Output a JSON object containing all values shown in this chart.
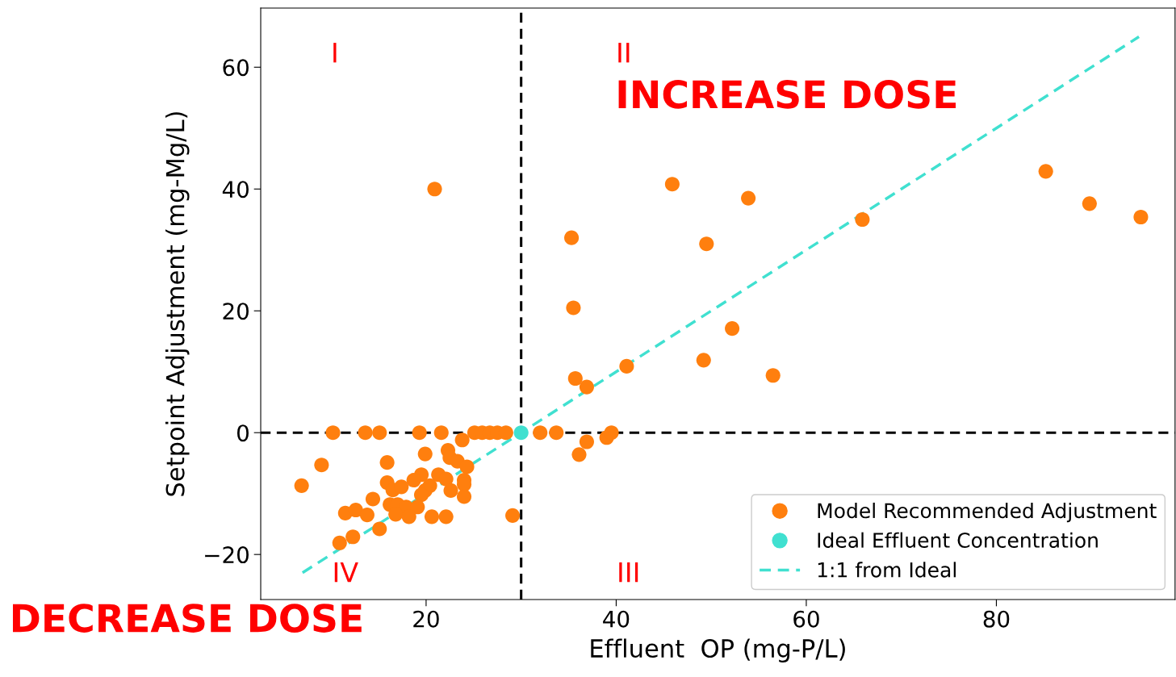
{
  "chart_data": {
    "type": "scatter",
    "xlabel": "Effluent  OP (mg-P/L)",
    "ylabel": "Setpoint Adjustment (mg-Mg/L)",
    "xlim": [
      2.6,
      98.8
    ],
    "ylim": [
      -27.4,
      69.7
    ],
    "xticks": [
      20,
      40,
      60,
      80
    ],
    "yticks": [
      {
        "value": -20,
        "label": "−20"
      },
      0,
      20,
      40,
      60
    ],
    "legend": "bottom right",
    "marker": "circle",
    "series": [
      {
        "name": "Model Recommended Adjustment",
        "color": "#ff7f0e",
        "x": [
          10.2,
          13.6,
          15.1,
          19.3,
          21.6,
          25.1,
          25.9,
          26.7,
          27.5,
          28.4,
          23.8,
          9.0,
          6.9,
          15.9,
          19.9,
          22.3,
          22.5,
          23.3,
          24.3,
          19.5,
          18.7,
          21.3,
          22.1,
          24.0,
          24.0,
          15.9,
          16.5,
          17.4,
          20.4,
          19.9,
          19.5,
          22.6,
          24.0,
          14.4,
          16.2,
          17.0,
          17.9,
          19.1,
          16.8,
          18.2,
          11.5,
          12.6,
          13.8,
          20.6,
          22.1,
          29.1,
          15.1,
          12.3,
          10.9,
          45.9,
          53.9,
          35.3,
          49.5,
          35.5,
          52.2,
          49.2,
          41.1,
          35.7,
          36.9,
          56.5,
          32.0,
          33.7,
          36.9,
          36.1,
          39.0,
          39.5,
          20.9,
          65.9,
          85.2,
          89.8,
          95.2
        ],
        "values": [
          0,
          0,
          0,
          0,
          0,
          0,
          0,
          0,
          0,
          0,
          -1.2,
          -5.3,
          -8.7,
          -4.9,
          -3.5,
          -2.9,
          -4.1,
          -4.7,
          -5.6,
          -6.9,
          -7.8,
          -6.9,
          -7.6,
          -7.8,
          -8.5,
          -8.2,
          -9.4,
          -8.9,
          -8.7,
          -9.5,
          -10.2,
          -9.5,
          -10.5,
          -10.9,
          -11.8,
          -11.8,
          -12.2,
          -12.2,
          -13.4,
          -13.8,
          -13.2,
          -12.7,
          -13.5,
          -13.8,
          -13.8,
          -13.6,
          -15.8,
          -17.1,
          -18.1,
          40.8,
          38.5,
          32.0,
          31.0,
          20.5,
          17.1,
          11.9,
          10.9,
          8.9,
          7.5,
          9.4,
          0,
          0,
          -1.5,
          -3.6,
          -0.8,
          0,
          40.0,
          35.0,
          42.9,
          37.6,
          35.4
        ]
      },
      {
        "name": "Ideal Effluent Concentration",
        "color": "#40e0d0",
        "x": [
          30
        ],
        "values": [
          0
        ]
      },
      {
        "name": "1:1 from Ideal",
        "color": "#40e0d0",
        "type": "line",
        "line_style": "dashed",
        "marker": "none",
        "x": [
          7,
          95
        ],
        "values": [
          -23,
          65
        ]
      }
    ],
    "ref_lines": [
      {
        "axis": "x",
        "value": 30,
        "color": "#000000",
        "line_style": "dashed"
      },
      {
        "axis": "y",
        "value": 0,
        "color": "#000000",
        "line_style": "dashed"
      }
    ],
    "annotations": [
      "I",
      "II",
      "III",
      "IV",
      "INCREASE DOSE",
      "DECREASE DOSE"
    ]
  }
}
